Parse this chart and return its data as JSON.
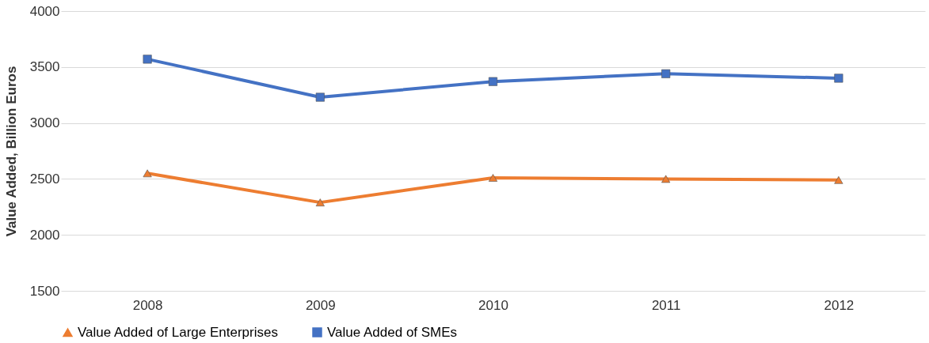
{
  "chart_data": {
    "type": "line",
    "ylabel": "Value Added, Billion Euros",
    "categories": [
      "2008",
      "2009",
      "2010",
      "2011",
      "2012"
    ],
    "series": [
      {
        "name": "Value Added of Large Enterprises",
        "color": "#ed7d31",
        "marker": "triangle",
        "values": [
          2550,
          2290,
          2510,
          2500,
          2490
        ]
      },
      {
        "name": "Value Added of SMEs",
        "color": "#4472c4",
        "marker": "square",
        "values": [
          3570,
          3230,
          3370,
          3440,
          3400
        ]
      }
    ],
    "ylim": [
      1500,
      4000
    ],
    "yticks": [
      1500,
      2000,
      2500,
      3000,
      3500,
      4000
    ],
    "grid": "y",
    "legend": "bottom",
    "line_style": "solid"
  }
}
